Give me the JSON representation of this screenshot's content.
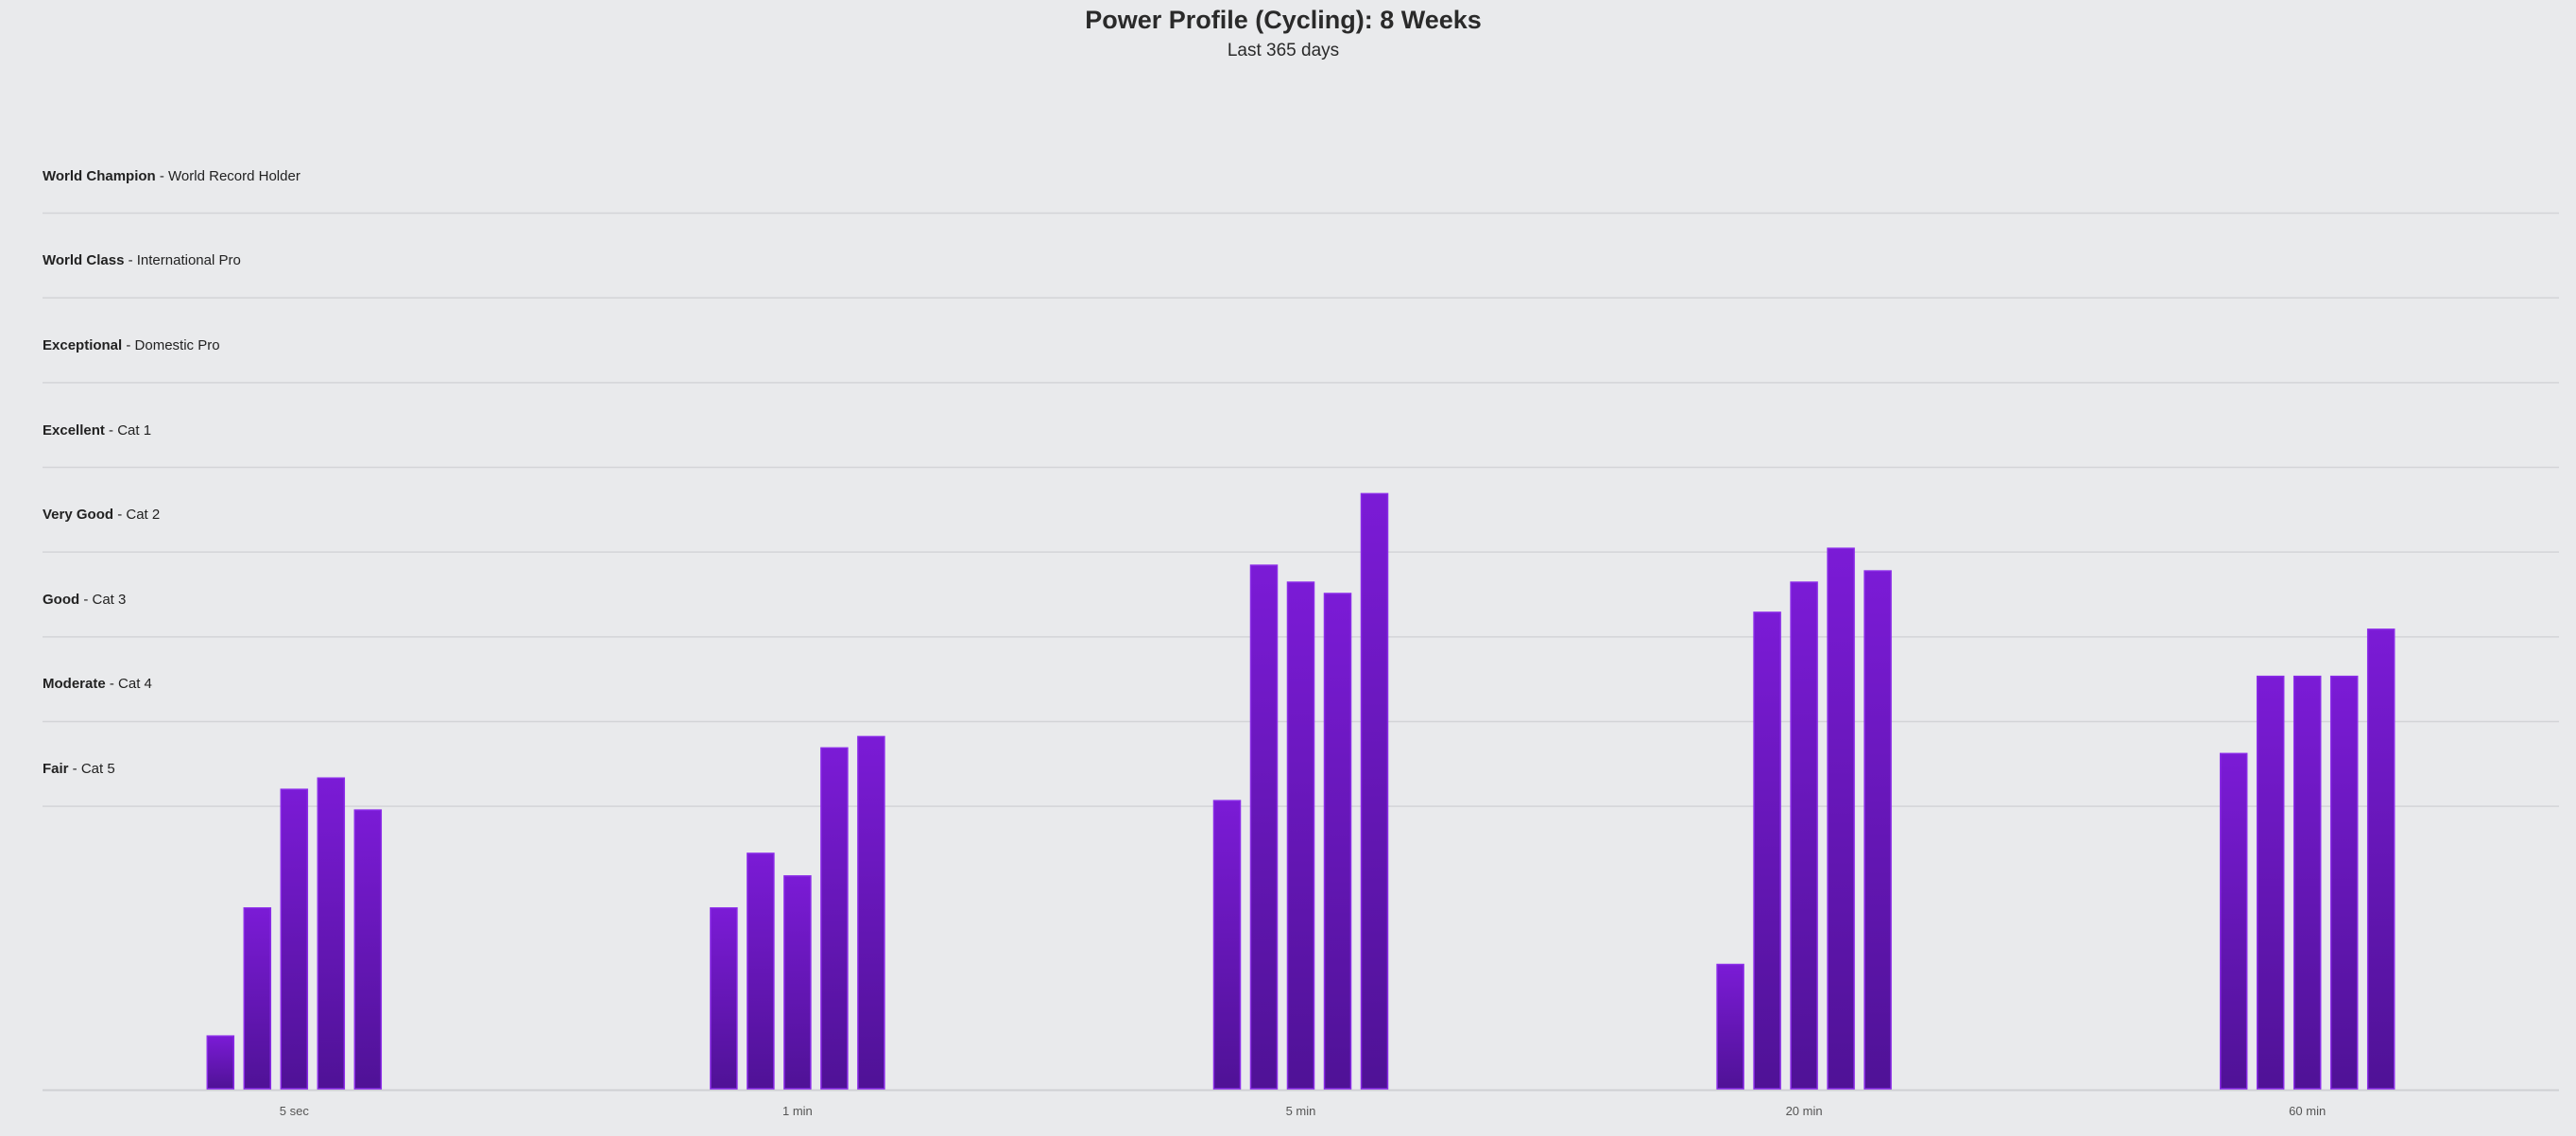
{
  "chart_data": {
    "type": "bar",
    "title": "Power Profile (Cycling): 8 Weeks",
    "subtitle": "Last 365 days",
    "categories": [
      "5 sec",
      "1 min",
      "5 min",
      "20 min",
      "60 min"
    ],
    "levels": [
      {
        "name": "World Champion",
        "desc": "World Record Holder"
      },
      {
        "name": "World Class",
        "desc": "International Pro"
      },
      {
        "name": "Exceptional",
        "desc": "Domestic Pro"
      },
      {
        "name": "Excellent",
        "desc": "Cat 1"
      },
      {
        "name": "Very Good",
        "desc": "Cat 2"
      },
      {
        "name": "Good",
        "desc": "Cat 3"
      },
      {
        "name": "Moderate",
        "desc": "Cat 4"
      },
      {
        "name": "Fair",
        "desc": "Cat 5"
      }
    ],
    "series": [
      {
        "values": [
          0.56,
          1.92,
          3.06,
          1.32,
          3.56
        ]
      },
      {
        "values": [
          1.92,
          2.5,
          5.56,
          5.06,
          4.38
        ]
      },
      {
        "values": [
          3.18,
          2.26,
          5.38,
          5.38,
          4.38
        ]
      },
      {
        "values": [
          3.3,
          3.62,
          5.26,
          5.74,
          4.38
        ]
      },
      {
        "values": [
          2.96,
          3.74,
          6.32,
          5.5,
          4.88
        ]
      }
    ],
    "ylim": [
      0,
      10.56
    ],
    "grid": true,
    "bar_color": "#7b1bd6",
    "bar_color_dark": "#4f1296"
  }
}
